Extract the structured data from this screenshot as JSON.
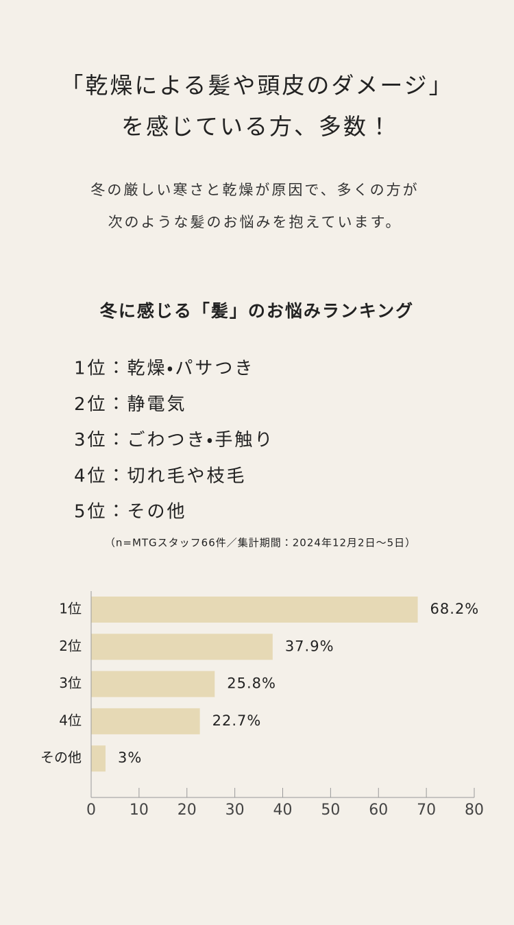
{
  "headline": [
    "「乾燥による髪や頭皮のダメージ」",
    "を感じている方、多数！"
  ],
  "lead": [
    "冬の厳しい寒さと乾燥が原因で、多くの方が",
    "次のような髪のお悩みを抱えています。"
  ],
  "ranking": {
    "title": "冬に感じる「髪」のお悩みランキング",
    "items": [
      "1位：乾燥・パサつき",
      "2位：静電気",
      "3位：ごわつき・手触り",
      "4位：切れ毛や枝毛",
      "5位：その他"
    ],
    "note": "（n=MTGスタッフ66件／集計期間：2024年12月2日〜5日）"
  },
  "chart_data": {
    "type": "hbar",
    "categories": [
      "1位",
      "2位",
      "3位",
      "4位",
      "その他"
    ],
    "values": [
      68.2,
      37.9,
      25.8,
      22.7,
      3
    ],
    "value_labels": [
      "68.2%",
      "37.9%",
      "25.8%",
      "22.7%",
      "3%"
    ],
    "color": "#e6d9b5",
    "xlim": [
      0,
      80
    ],
    "xticks": [
      0,
      10,
      20,
      30,
      40,
      50,
      60,
      70,
      80
    ]
  }
}
